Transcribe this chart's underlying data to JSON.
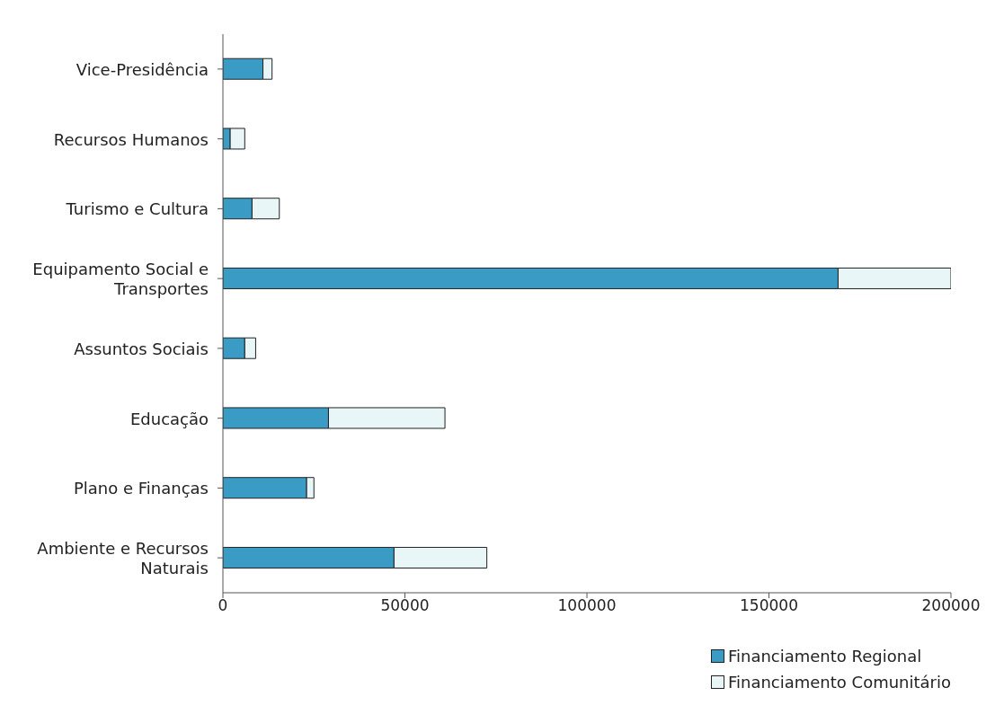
{
  "chart_data": {
    "type": "bar",
    "orientation": "horizontal",
    "stacked": true,
    "categories": [
      "Vice-Presidência",
      "Recursos Humanos",
      "Turismo e Cultura",
      "Equipamento Social e Transportes",
      "Assuntos Sociais",
      "Educação",
      "Plano e Finanças",
      "Ambiente e Recursos Naturais"
    ],
    "series": [
      {
        "name": "Financiamento Regional",
        "color": "#3a9cc4",
        "values": [
          11000,
          2000,
          8000,
          169000,
          6000,
          29000,
          23000,
          47000
        ]
      },
      {
        "name": "Financiamento Comunitário",
        "color": "#e8f6f8",
        "values": [
          2500,
          4000,
          7500,
          31000,
          3000,
          32000,
          2000,
          25500
        ]
      }
    ],
    "xlim": [
      0,
      200000
    ],
    "xticks": [
      0,
      50000,
      100000,
      150000,
      200000
    ],
    "grid": false,
    "legend": "bottom right"
  }
}
